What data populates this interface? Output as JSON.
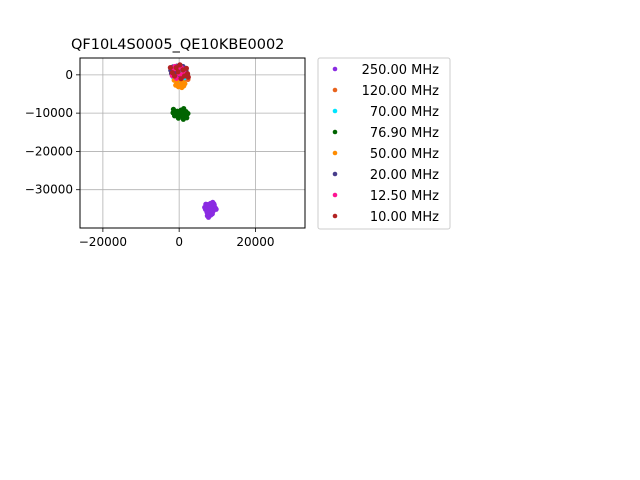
{
  "chart_data": {
    "type": "scatter",
    "title": "QF10L4S0005_QE10KBE0002",
    "xlabel": "",
    "ylabel": "",
    "xlim": [
      -26000,
      33000
    ],
    "ylim": [
      -40000,
      4400
    ],
    "xticks": [
      -20000,
      0,
      20000
    ],
    "xtick_labels": [
      "−20000",
      "0",
      "20000"
    ],
    "yticks": [
      0,
      -10000,
      -20000,
      -30000
    ],
    "ytick_labels": [
      "0",
      "−10000",
      "−20000",
      "−30000"
    ],
    "grid": true,
    "legend_position": "outside-right",
    "series": [
      {
        "name": "250.00 MHz",
        "color": "#8a2be2",
        "points": [
          [
            7000,
            -33800
          ],
          [
            7600,
            -34400
          ],
          [
            8200,
            -33600
          ],
          [
            8800,
            -33300
          ],
          [
            9200,
            -34000
          ],
          [
            9500,
            -34800
          ],
          [
            8600,
            -35200
          ],
          [
            7800,
            -35000
          ],
          [
            7200,
            -35400
          ],
          [
            7900,
            -36000
          ],
          [
            8300,
            -36600
          ],
          [
            7700,
            -37200
          ],
          [
            7400,
            -36800
          ],
          [
            8900,
            -35600
          ],
          [
            9700,
            -35100
          ],
          [
            6700,
            -34600
          ],
          [
            7500,
            -33900
          ],
          [
            8500,
            -34300
          ],
          [
            8100,
            -35800
          ],
          [
            9100,
            -33700
          ],
          [
            7300,
            -35900
          ],
          [
            8700,
            -36300
          ],
          [
            6900,
            -35100
          ],
          [
            8000,
            -34700
          ]
        ]
      },
      {
        "name": "120.00 MHz",
        "color": "#e8641e",
        "points": [
          [
            1400,
            -1000
          ],
          [
            2000,
            -400
          ],
          [
            500,
            -1700
          ],
          [
            1700,
            400
          ],
          [
            900,
            -200
          ],
          [
            2300,
            -1200
          ],
          [
            1200,
            -2100
          ],
          [
            600,
            700
          ]
        ]
      },
      {
        "name": "70.00 MHz",
        "color": "#00e5ff",
        "points": [
          [
            -1000,
            1000
          ],
          [
            -300,
            -1500
          ],
          [
            800,
            800
          ],
          [
            -1500,
            -600
          ],
          [
            200,
            1400
          ],
          [
            1300,
            -800
          ]
        ]
      },
      {
        "name": "76.90 MHz",
        "color": "#006400",
        "points": [
          [
            -1500,
            -9000
          ],
          [
            -500,
            -9500
          ],
          [
            500,
            -9200
          ],
          [
            1200,
            -8800
          ],
          [
            1800,
            -9600
          ],
          [
            2300,
            -10100
          ],
          [
            1700,
            -10600
          ],
          [
            900,
            -10900
          ],
          [
            0,
            -10500
          ],
          [
            -900,
            -10200
          ],
          [
            -1600,
            -9900
          ],
          [
            -200,
            -11300
          ],
          [
            1100,
            -11600
          ],
          [
            2000,
            -11200
          ],
          [
            400,
            -9800
          ],
          [
            1500,
            -9900
          ],
          [
            -1200,
            -10700
          ],
          [
            700,
            -10300
          ]
        ]
      },
      {
        "name": "50.00 MHz",
        "color": "#ff8c00",
        "points": [
          [
            -1300,
            -1400
          ],
          [
            -600,
            -2200
          ],
          [
            400,
            -2600
          ],
          [
            1200,
            -2900
          ],
          [
            -200,
            -3100
          ],
          [
            900,
            -1900
          ],
          [
            -900,
            -2700
          ],
          [
            700,
            -3300
          ],
          [
            1500,
            -2300
          ],
          [
            0,
            -1200
          ]
        ]
      },
      {
        "name": "20.00 MHz",
        "color": "#483d8b",
        "points": [
          [
            -2200,
            1200
          ],
          [
            -1600,
            2100
          ],
          [
            -600,
            2300
          ],
          [
            300,
            1800
          ],
          [
            -2000,
            400
          ],
          [
            -1100,
            600
          ],
          [
            1000,
            2200
          ],
          [
            1800,
            1000
          ],
          [
            -300,
            -400
          ]
        ]
      },
      {
        "name": "12.50 MHz",
        "color": "#ff1493",
        "points": [
          [
            -1400,
            1600
          ],
          [
            -400,
            1200
          ],
          [
            500,
            2000
          ],
          [
            1200,
            300
          ],
          [
            -700,
            -900
          ],
          [
            -1800,
            -200
          ],
          [
            1500,
            1500
          ],
          [
            0,
            300
          ],
          [
            800,
            -500
          ],
          [
            -1100,
            2200
          ]
        ]
      },
      {
        "name": "10.00 MHz",
        "color": "#b22222",
        "points": [
          [
            -1800,
            600
          ],
          [
            -800,
            1900
          ],
          [
            200,
            2600
          ],
          [
            1000,
            1300
          ],
          [
            1900,
            1700
          ],
          [
            2200,
            300
          ],
          [
            -2300,
            1900
          ],
          [
            -300,
            800
          ],
          [
            1400,
            -300
          ],
          [
            500,
            -1000
          ],
          [
            -1200,
            -300
          ],
          [
            2400,
            -600
          ]
        ]
      }
    ]
  }
}
